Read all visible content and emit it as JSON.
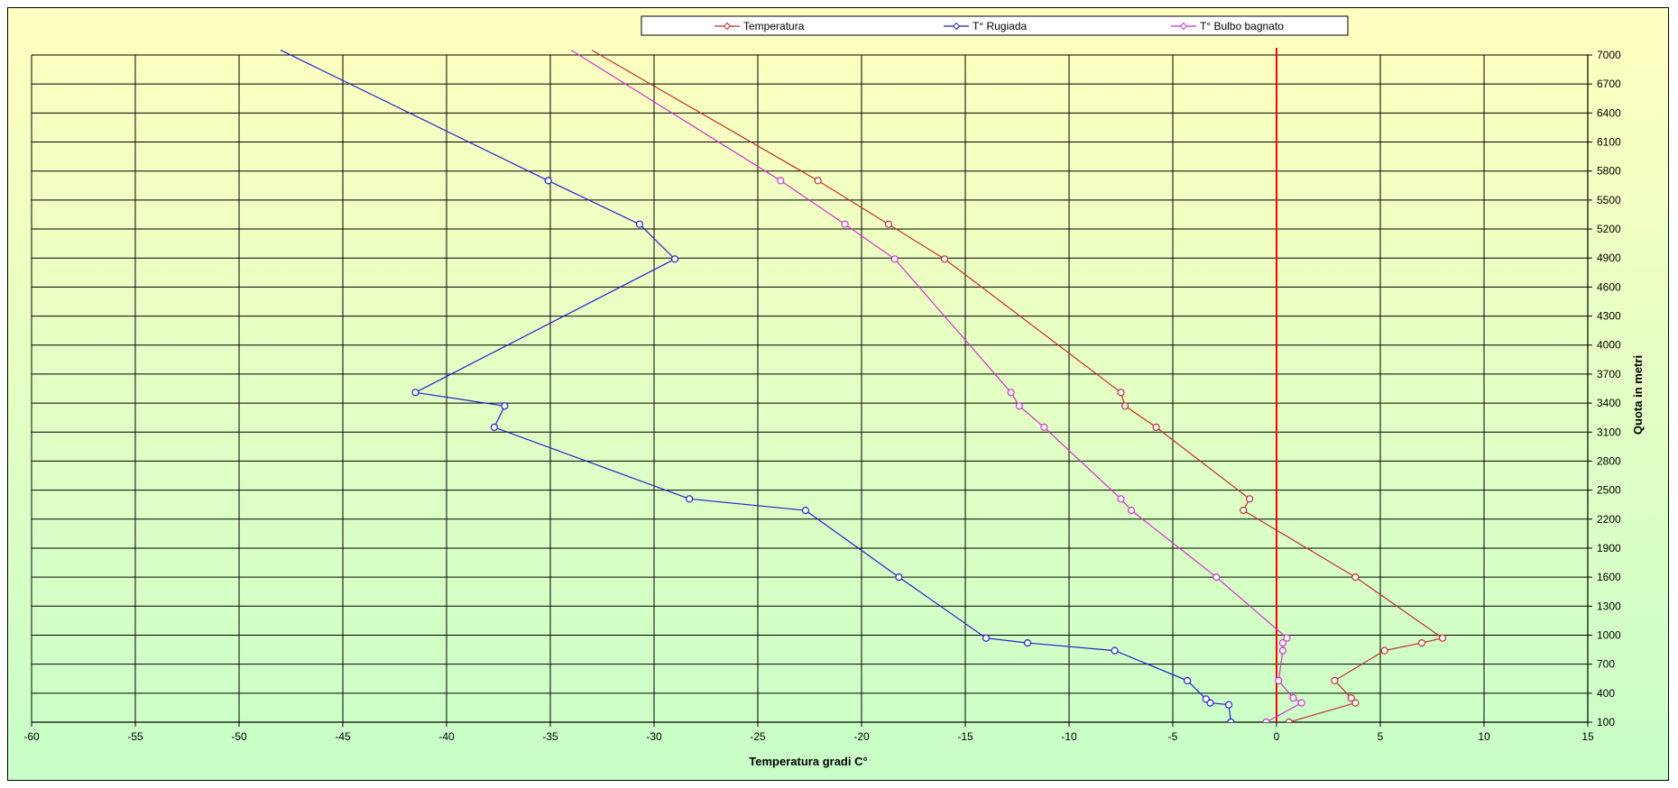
{
  "chart_data": {
    "type": "line",
    "xlabel": "Temperatura gradi C°",
    "ylabel": "Quota in metri",
    "xlim": [
      -60,
      15
    ],
    "ylim": [
      100,
      7000
    ],
    "x_ticks": [
      -60,
      -55,
      -50,
      -45,
      -40,
      -35,
      -30,
      -25,
      -20,
      -15,
      -10,
      -5,
      0,
      5,
      10,
      15
    ],
    "y_ticks": [
      100,
      400,
      700,
      1000,
      1300,
      1600,
      1900,
      2200,
      2500,
      2800,
      3100,
      3400,
      3700,
      4000,
      4300,
      4600,
      4900,
      5200,
      5500,
      5800,
      6100,
      6400,
      6700,
      7000
    ],
    "grid": true,
    "legend_position": "top",
    "reference_line": {
      "x": 0,
      "color": "#ff0000"
    },
    "background_gradient": [
      "#ffffc0",
      "#c8ffc8"
    ],
    "series": [
      {
        "name": "Temperatura",
        "color": "#c03030",
        "points": [
          [
            0.6,
            100
          ],
          [
            3.8,
            300
          ],
          [
            3.6,
            350
          ],
          [
            2.8,
            530
          ],
          [
            5.2,
            840
          ],
          [
            7.0,
            920
          ],
          [
            8.0,
            970
          ],
          [
            3.8,
            1600
          ],
          [
            -1.6,
            2290
          ],
          [
            -1.3,
            2410
          ],
          [
            -5.8,
            3150
          ],
          [
            -7.3,
            3370
          ],
          [
            -7.5,
            3510
          ],
          [
            -16,
            4890
          ],
          [
            -18.7,
            5250
          ],
          [
            -22.1,
            5700
          ],
          [
            -33,
            7050
          ]
        ],
        "markers": [
          [
            0.6,
            100
          ],
          [
            3.8,
            300
          ],
          [
            3.6,
            350
          ],
          [
            2.8,
            530
          ],
          [
            5.2,
            840
          ],
          [
            7.0,
            920
          ],
          [
            8.0,
            970
          ],
          [
            3.8,
            1600
          ],
          [
            -1.6,
            2290
          ],
          [
            -1.3,
            2410
          ],
          [
            -5.8,
            3150
          ],
          [
            -7.3,
            3370
          ],
          [
            -7.5,
            3510
          ],
          [
            -16,
            4890
          ],
          [
            -18.7,
            5250
          ],
          [
            -22.1,
            5700
          ]
        ]
      },
      {
        "name": "T° Rugiada",
        "color": "#2020d0",
        "points": [
          [
            -2.2,
            100
          ],
          [
            -2.3,
            280
          ],
          [
            -3.2,
            300
          ],
          [
            -3.4,
            340
          ],
          [
            -4.3,
            530
          ],
          [
            -7.8,
            840
          ],
          [
            -12,
            920
          ],
          [
            -14,
            970
          ],
          [
            -18.2,
            1600
          ],
          [
            -22.7,
            2290
          ],
          [
            -28.3,
            2410
          ],
          [
            -37.7,
            3150
          ],
          [
            -37.2,
            3370
          ],
          [
            -41.5,
            3510
          ],
          [
            -29,
            4890
          ],
          [
            -30.7,
            5250
          ],
          [
            -35.1,
            5700
          ],
          [
            -48,
            7050
          ]
        ],
        "markers": [
          [
            -2.2,
            100
          ],
          [
            -2.3,
            280
          ],
          [
            -3.2,
            300
          ],
          [
            -3.4,
            340
          ],
          [
            -4.3,
            530
          ],
          [
            -7.8,
            840
          ],
          [
            -12,
            920
          ],
          [
            -14,
            970
          ],
          [
            -18.2,
            1600
          ],
          [
            -22.7,
            2290
          ],
          [
            -28.3,
            2410
          ],
          [
            -37.7,
            3150
          ],
          [
            -37.2,
            3370
          ],
          [
            -41.5,
            3510
          ],
          [
            -29,
            4890
          ],
          [
            -30.7,
            5250
          ],
          [
            -35.1,
            5700
          ]
        ]
      },
      {
        "name": "T° Bulbo bagnato",
        "color": "#cc33cc",
        "points": [
          [
            -0.5,
            100
          ],
          [
            1.2,
            300
          ],
          [
            0.8,
            350
          ],
          [
            0.1,
            530
          ],
          [
            0.3,
            840
          ],
          [
            0.3,
            920
          ],
          [
            0.5,
            970
          ],
          [
            -2.9,
            1600
          ],
          [
            -7,
            2290
          ],
          [
            -7.5,
            2410
          ],
          [
            -11.2,
            3150
          ],
          [
            -12.4,
            3370
          ],
          [
            -12.8,
            3510
          ],
          [
            -18.4,
            4890
          ],
          [
            -20.8,
            5250
          ],
          [
            -23.9,
            5700
          ],
          [
            -34,
            7050
          ]
        ],
        "markers": [
          [
            -0.5,
            100
          ],
          [
            1.2,
            300
          ],
          [
            0.8,
            350
          ],
          [
            0.1,
            530
          ],
          [
            0.3,
            840
          ],
          [
            0.3,
            920
          ],
          [
            0.5,
            970
          ],
          [
            -2.9,
            1600
          ],
          [
            -7,
            2290
          ],
          [
            -7.5,
            2410
          ],
          [
            -11.2,
            3150
          ],
          [
            -12.4,
            3370
          ],
          [
            -12.8,
            3510
          ],
          [
            -18.4,
            4890
          ],
          [
            -20.8,
            5250
          ],
          [
            -23.9,
            5700
          ]
        ]
      }
    ]
  }
}
